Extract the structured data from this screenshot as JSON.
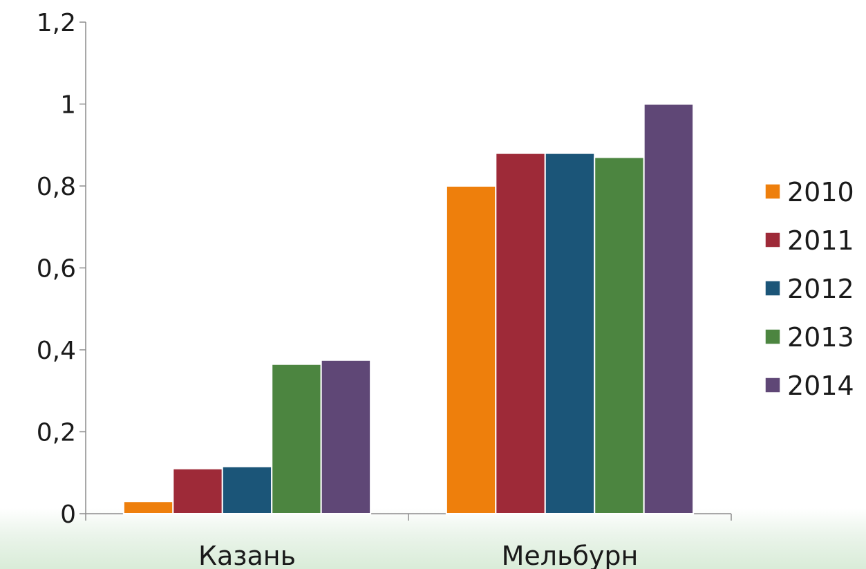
{
  "chart_data": {
    "type": "bar",
    "categories": [
      "Казань",
      "Мельбурн"
    ],
    "series": [
      {
        "name": "2010",
        "color": "#ee7f0c",
        "values": [
          0.03,
          0.8
        ]
      },
      {
        "name": "2011",
        "color": "#9e2a38",
        "values": [
          0.11,
          0.88
        ]
      },
      {
        "name": "2012",
        "color": "#1b5578",
        "values": [
          0.115,
          0.88
        ]
      },
      {
        "name": "2013",
        "color": "#4c8540",
        "values": [
          0.365,
          0.87
        ]
      },
      {
        "name": "2014",
        "color": "#5f4776",
        "values": [
          0.375,
          1.0
        ]
      }
    ],
    "y_ticks": [
      "0",
      "0,2",
      "0,4",
      "0,6",
      "0,8",
      "1",
      "1,2"
    ],
    "ylim": [
      0,
      1.2
    ],
    "legend_position": "right",
    "grid": false
  }
}
